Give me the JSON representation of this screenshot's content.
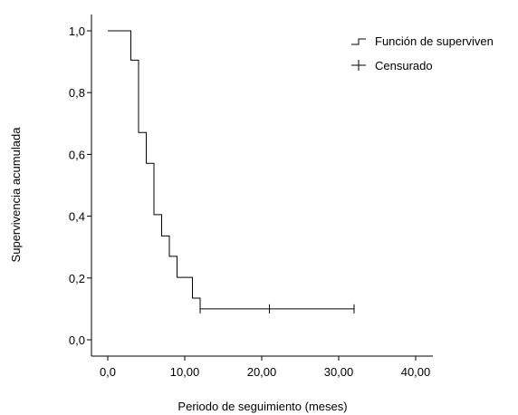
{
  "chart_data": {
    "type": "line",
    "subtype": "kaplan-meier step",
    "xlabel": "Periodo de seguimiento (meses)",
    "ylabel": "Supervivencia acumulada",
    "xlim": [
      0,
      40
    ],
    "ylim": [
      0,
      1.0
    ],
    "x_ticks": [
      "0,0",
      "10,00",
      "20,00",
      "30,00",
      "40,00"
    ],
    "y_ticks": [
      "0,0",
      "0,2",
      "0,4",
      "0,6",
      "0,8",
      "1,0"
    ],
    "grid": false,
    "legend_position": "top-right",
    "legend": [
      "Función de superviven",
      "Censurado"
    ],
    "series": [
      {
        "name": "Función de superviven",
        "x": [
          0,
          3,
          4,
          5,
          6,
          7,
          8,
          9,
          11,
          12,
          32
        ],
        "y": [
          1.0,
          0.905,
          0.671,
          0.571,
          0.405,
          0.336,
          0.27,
          0.202,
          0.135,
          0.1,
          0.1
        ]
      },
      {
        "name": "Censurado",
        "x": [
          12,
          21,
          32
        ],
        "y": [
          0.1,
          0.1,
          0.1
        ]
      }
    ]
  }
}
